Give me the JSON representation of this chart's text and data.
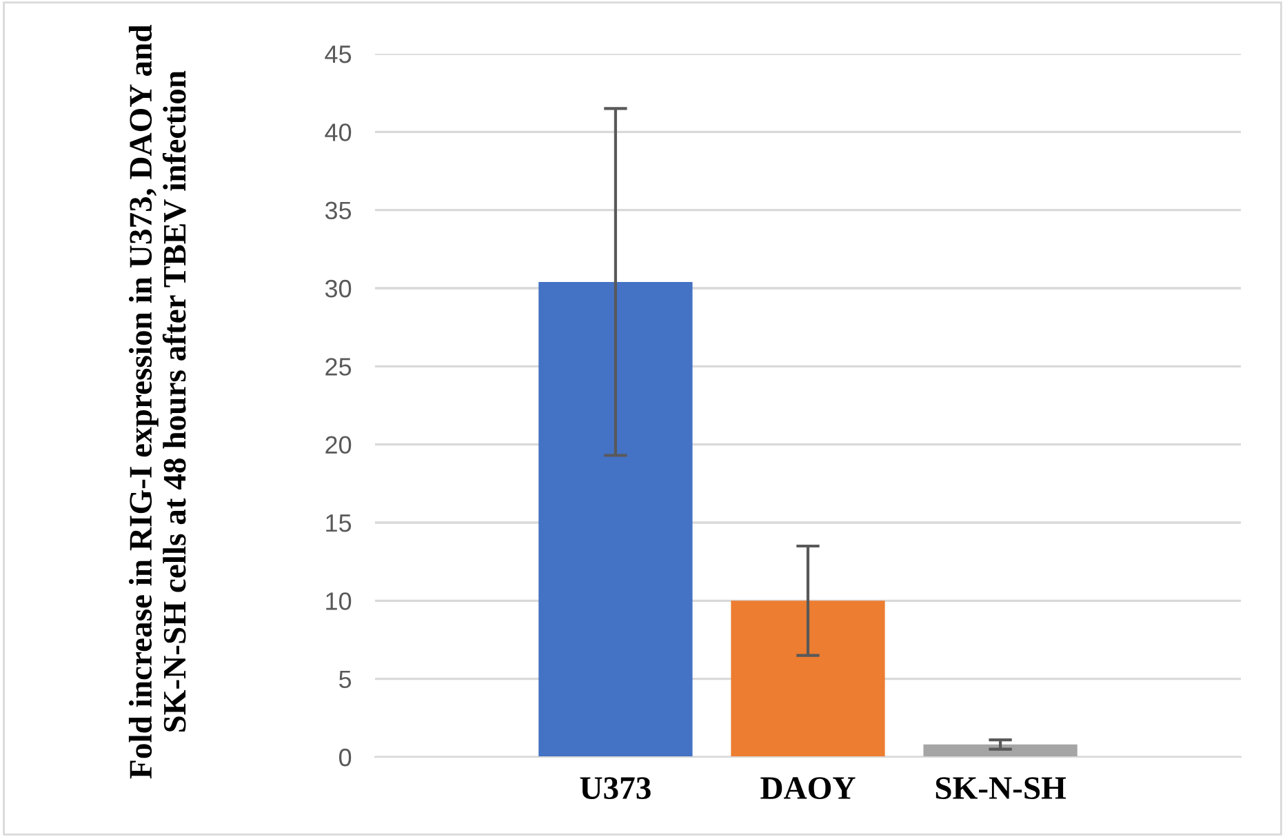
{
  "chart_data": {
    "type": "bar",
    "ylabel": "Fold increase in RIG-I expression in U373, DAOY and SK-N-SH cells at 48 hours after TBEV infection",
    "categories": [
      "U373",
      "DAOY",
      "SK-N-SH"
    ],
    "values": [
      30.4,
      10.0,
      0.8
    ],
    "colors": [
      "#4472c4",
      "#ed7d31",
      "#a5a5a5"
    ],
    "errors": [
      11.1,
      3.5,
      0.3
    ],
    "ylim": [
      0,
      45
    ],
    "yticks": [
      0,
      5,
      10,
      15,
      20,
      25,
      30,
      35,
      40,
      45
    ],
    "grid": "y",
    "legend": false
  }
}
